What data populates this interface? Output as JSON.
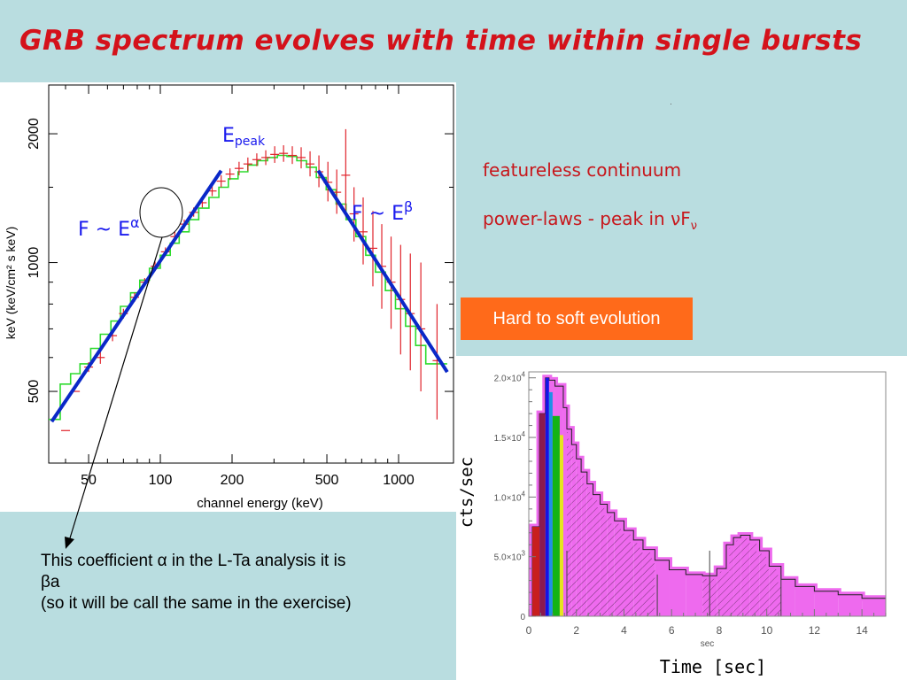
{
  "title": "GRB spectrum evolves with time within single bursts",
  "labels": {
    "featureless": "featureless continuum",
    "powerlaw_prefix": "power-laws - peak in ",
    "nu": "ν",
    "F": "F",
    "badge": "Hard to soft evolution",
    "epeak_E": "E",
    "epeak_sub": "peak",
    "alpha_prefix": "F ~ E",
    "alpha_sym": "α",
    "beta_prefix": "F ~ E",
    "beta_sym": "β"
  },
  "note": {
    "line1": "This coefficient α in the L-Ta analysis it is",
    "line2": "βa",
    "line3": "(so it will be call the same in the exercise)"
  },
  "chart_data": [
    {
      "type": "line",
      "xlabel": "channel energy (keV)",
      "ylabel": "keV (keV/cm² s keV)",
      "x_scale": "log",
      "y_scale": "log",
      "xlim": [
        34,
        1700
      ],
      "ylim": [
        340,
        2600
      ],
      "x_ticks": [
        50,
        100,
        200,
        500,
        1000
      ],
      "y_ticks": [
        500,
        1000,
        2000
      ],
      "series": [
        {
          "kind": "data-with-errors",
          "color": "#e0232b",
          "points": [
            {
              "x": 40,
              "y": 405,
              "lo": 405,
              "hi": 405
            },
            {
              "x": 44,
              "y": 500,
              "lo": 500,
              "hi": 500
            },
            {
              "x": 50,
              "y": 570,
              "lo": 555,
              "hi": 585
            },
            {
              "x": 56,
              "y": 600,
              "lo": 580,
              "hi": 620
            },
            {
              "x": 63,
              "y": 675,
              "lo": 655,
              "hi": 695
            },
            {
              "x": 70,
              "y": 760,
              "lo": 740,
              "hi": 780
            },
            {
              "x": 78,
              "y": 830,
              "lo": 810,
              "hi": 850
            },
            {
              "x": 86,
              "y": 900,
              "lo": 880,
              "hi": 920
            },
            {
              "x": 95,
              "y": 980,
              "lo": 955,
              "hi": 1005
            },
            {
              "x": 105,
              "y": 1060,
              "lo": 1035,
              "hi": 1085
            },
            {
              "x": 115,
              "y": 1150,
              "lo": 1120,
              "hi": 1180
            },
            {
              "x": 126,
              "y": 1230,
              "lo": 1200,
              "hi": 1260
            },
            {
              "x": 138,
              "y": 1310,
              "lo": 1280,
              "hi": 1345
            },
            {
              "x": 150,
              "y": 1380,
              "lo": 1345,
              "hi": 1415
            },
            {
              "x": 165,
              "y": 1470,
              "lo": 1430,
              "hi": 1510
            },
            {
              "x": 180,
              "y": 1550,
              "lo": 1500,
              "hi": 1600
            },
            {
              "x": 196,
              "y": 1610,
              "lo": 1560,
              "hi": 1660
            },
            {
              "x": 214,
              "y": 1660,
              "lo": 1600,
              "hi": 1720
            },
            {
              "x": 233,
              "y": 1700,
              "lo": 1640,
              "hi": 1760
            },
            {
              "x": 254,
              "y": 1740,
              "lo": 1680,
              "hi": 1800
            },
            {
              "x": 277,
              "y": 1760,
              "lo": 1690,
              "hi": 1830
            },
            {
              "x": 302,
              "y": 1790,
              "lo": 1710,
              "hi": 1870
            },
            {
              "x": 329,
              "y": 1800,
              "lo": 1720,
              "hi": 1880
            },
            {
              "x": 358,
              "y": 1780,
              "lo": 1700,
              "hi": 1870
            },
            {
              "x": 390,
              "y": 1760,
              "lo": 1660,
              "hi": 1860
            },
            {
              "x": 425,
              "y": 1700,
              "lo": 1590,
              "hi": 1820
            },
            {
              "x": 463,
              "y": 1630,
              "lo": 1500,
              "hi": 1780
            },
            {
              "x": 505,
              "y": 1540,
              "lo": 1390,
              "hi": 1720
            },
            {
              "x": 550,
              "y": 1460,
              "lo": 1300,
              "hi": 1650
            },
            {
              "x": 600,
              "y": 1600,
              "lo": 1280,
              "hi": 2050
            },
            {
              "x": 650,
              "y": 1300,
              "lo": 1120,
              "hi": 1500
            },
            {
              "x": 710,
              "y": 1180,
              "lo": 990,
              "hi": 1420
            },
            {
              "x": 780,
              "y": 1080,
              "lo": 880,
              "hi": 1320
            },
            {
              "x": 850,
              "y": 980,
              "lo": 780,
              "hi": 1230
            },
            {
              "x": 930,
              "y": 900,
              "lo": 700,
              "hi": 1150
            },
            {
              "x": 1020,
              "y": 820,
              "lo": 610,
              "hi": 1100
            },
            {
              "x": 1120,
              "y": 760,
              "lo": 560,
              "hi": 1050
            },
            {
              "x": 1240,
              "y": 700,
              "lo": 500,
              "hi": 1000
            },
            {
              "x": 1450,
              "y": 590,
              "lo": 430,
              "hi": 800
            }
          ]
        },
        {
          "kind": "model-step",
          "color": "#2edb2e",
          "points": [
            [
              34,
              430
            ],
            [
              38,
              430
            ],
            [
              38,
              520
            ],
            [
              42,
              520
            ],
            [
              42,
              550
            ],
            [
              46,
              550
            ],
            [
              46,
              580
            ],
            [
              51,
              580
            ],
            [
              51,
              630
            ],
            [
              56,
              630
            ],
            [
              56,
              680
            ],
            [
              62,
              680
            ],
            [
              62,
              730
            ],
            [
              68,
              730
            ],
            [
              68,
              790
            ],
            [
              75,
              790
            ],
            [
              75,
              850
            ],
            [
              82,
              850
            ],
            [
              82,
              910
            ],
            [
              90,
              910
            ],
            [
              90,
              970
            ],
            [
              100,
              970
            ],
            [
              100,
              1040
            ],
            [
              110,
              1040
            ],
            [
              110,
              1110
            ],
            [
              120,
              1110
            ],
            [
              120,
              1180
            ],
            [
              132,
              1180
            ],
            [
              132,
              1260
            ],
            [
              145,
              1260
            ],
            [
              145,
              1340
            ],
            [
              160,
              1340
            ],
            [
              160,
              1420
            ],
            [
              176,
              1420
            ],
            [
              176,
              1500
            ],
            [
              193,
              1500
            ],
            [
              193,
              1570
            ],
            [
              212,
              1570
            ],
            [
              212,
              1630
            ],
            [
              233,
              1630
            ],
            [
              233,
              1690
            ],
            [
              256,
              1690
            ],
            [
              256,
              1730
            ],
            [
              282,
              1730
            ],
            [
              282,
              1760
            ],
            [
              310,
              1760
            ],
            [
              310,
              1780
            ],
            [
              340,
              1780
            ],
            [
              340,
              1770
            ],
            [
              374,
              1770
            ],
            [
              374,
              1730
            ],
            [
              411,
              1730
            ],
            [
              411,
              1670
            ],
            [
              452,
              1670
            ],
            [
              452,
              1580
            ],
            [
              497,
              1580
            ],
            [
              497,
              1480
            ],
            [
              547,
              1480
            ],
            [
              547,
              1370
            ],
            [
              602,
              1370
            ],
            [
              602,
              1260
            ],
            [
              662,
              1260
            ],
            [
              662,
              1150
            ],
            [
              728,
              1150
            ],
            [
              728,
              1040
            ],
            [
              800,
              1040
            ],
            [
              800,
              950
            ],
            [
              880,
              950
            ],
            [
              880,
              860
            ],
            [
              970,
              860
            ],
            [
              970,
              780
            ],
            [
              1070,
              780
            ],
            [
              1070,
              710
            ],
            [
              1180,
              710
            ],
            [
              1180,
              640
            ],
            [
              1300,
              640
            ],
            [
              1300,
              580
            ],
            [
              1600,
              580
            ]
          ]
        },
        {
          "kind": "fit-line",
          "name": "F ~ Eα",
          "color": "#0a28c8",
          "points": [
            [
              35,
              425
            ],
            [
              180,
              1640
            ]
          ]
        },
        {
          "kind": "fit-line",
          "name": "F ~ Eβ",
          "color": "#0a28c8",
          "points": [
            [
              460,
              1640
            ],
            [
              1600,
              555
            ]
          ]
        }
      ]
    },
    {
      "type": "bar",
      "xlabel": "sec",
      "ylabel": "cts/sec",
      "caption": "Time [sec]",
      "xlim": [
        0,
        15
      ],
      "ylim": [
        0,
        20500
      ],
      "x_ticks": [
        0,
        2,
        4,
        6,
        8,
        10,
        12,
        14
      ],
      "y_ticks": [
        {
          "value": 0,
          "label": "0"
        },
        {
          "value": 5000,
          "label": "5.0×10³"
        },
        {
          "value": 10000,
          "label": "1.0×10⁴"
        },
        {
          "value": 15000,
          "label": "1.5×10⁴"
        },
        {
          "value": 20000,
          "label": "2.0×10⁴"
        }
      ],
      "colored_intervals": [
        {
          "start": 0.15,
          "end": 0.45,
          "value": 7500,
          "color": "#c81e1e"
        },
        {
          "start": 0.45,
          "end": 0.7,
          "value": 17000,
          "color": "#8b1a4f"
        },
        {
          "start": 0.7,
          "end": 0.85,
          "value": 20000,
          "color": "#1414e6"
        },
        {
          "start": 0.85,
          "end": 1.0,
          "value": 18800,
          "color": "#1e90e6"
        },
        {
          "start": 1.0,
          "end": 1.3,
          "value": 16800,
          "color": "#14b414"
        },
        {
          "start": 1.3,
          "end": 1.45,
          "value": 15200,
          "color": "#e6e61e"
        }
      ],
      "histogram": {
        "color": "#ee6aee",
        "bins": [
          {
            "start": 0.15,
            "end": 0.45,
            "value": 7500
          },
          {
            "start": 0.45,
            "end": 0.7,
            "value": 17000
          },
          {
            "start": 0.7,
            "end": 0.85,
            "value": 20000
          },
          {
            "start": 0.85,
            "end": 1.1,
            "value": 19800
          },
          {
            "start": 1.1,
            "end": 1.45,
            "value": 19300
          },
          {
            "start": 1.45,
            "end": 1.6,
            "value": 17500
          },
          {
            "start": 1.6,
            "end": 1.8,
            "value": 15700
          },
          {
            "start": 1.8,
            "end": 2.0,
            "value": 14400
          },
          {
            "start": 2.0,
            "end": 2.2,
            "value": 13200
          },
          {
            "start": 2.2,
            "end": 2.45,
            "value": 12100
          },
          {
            "start": 2.45,
            "end": 2.7,
            "value": 11100
          },
          {
            "start": 2.7,
            "end": 3.0,
            "value": 10200
          },
          {
            "start": 3.0,
            "end": 3.3,
            "value": 9400
          },
          {
            "start": 3.3,
            "end": 3.6,
            "value": 8700
          },
          {
            "start": 3.6,
            "end": 4.0,
            "value": 8000
          },
          {
            "start": 4.0,
            "end": 4.4,
            "value": 7200
          },
          {
            "start": 4.4,
            "end": 4.8,
            "value": 6400
          },
          {
            "start": 4.8,
            "end": 5.3,
            "value": 5600
          },
          {
            "start": 5.3,
            "end": 5.9,
            "value": 4700
          },
          {
            "start": 5.9,
            "end": 6.6,
            "value": 3900
          },
          {
            "start": 6.6,
            "end": 7.3,
            "value": 3500
          },
          {
            "start": 7.3,
            "end": 7.9,
            "value": 3400
          },
          {
            "start": 7.9,
            "end": 8.3,
            "value": 4000
          },
          {
            "start": 8.3,
            "end": 8.6,
            "value": 6000
          },
          {
            "start": 8.6,
            "end": 8.9,
            "value": 6600
          },
          {
            "start": 8.9,
            "end": 9.3,
            "value": 6800
          },
          {
            "start": 9.3,
            "end": 9.7,
            "value": 6400
          },
          {
            "start": 9.7,
            "end": 10.1,
            "value": 5500
          },
          {
            "start": 10.1,
            "end": 10.6,
            "value": 4200
          },
          {
            "start": 10.6,
            "end": 11.2,
            "value": 3100
          },
          {
            "start": 11.2,
            "end": 12.0,
            "value": 2500
          },
          {
            "start": 12.0,
            "end": 13.0,
            "value": 2100
          },
          {
            "start": 13.0,
            "end": 14.0,
            "value": 1800
          },
          {
            "start": 14.0,
            "end": 15.0,
            "value": 1500
          }
        ],
        "hatched_intervals": [
          [
            1.6,
            5.4
          ],
          [
            7.6,
            10.6
          ]
        ]
      }
    }
  ],
  "colors": {
    "background": "#b9dde0",
    "title": "#d4121b",
    "accent_text": "#c7171c",
    "badge": "#ff6a1a",
    "fit_line": "#0a28c8",
    "label_blue": "#1a1aee"
  }
}
